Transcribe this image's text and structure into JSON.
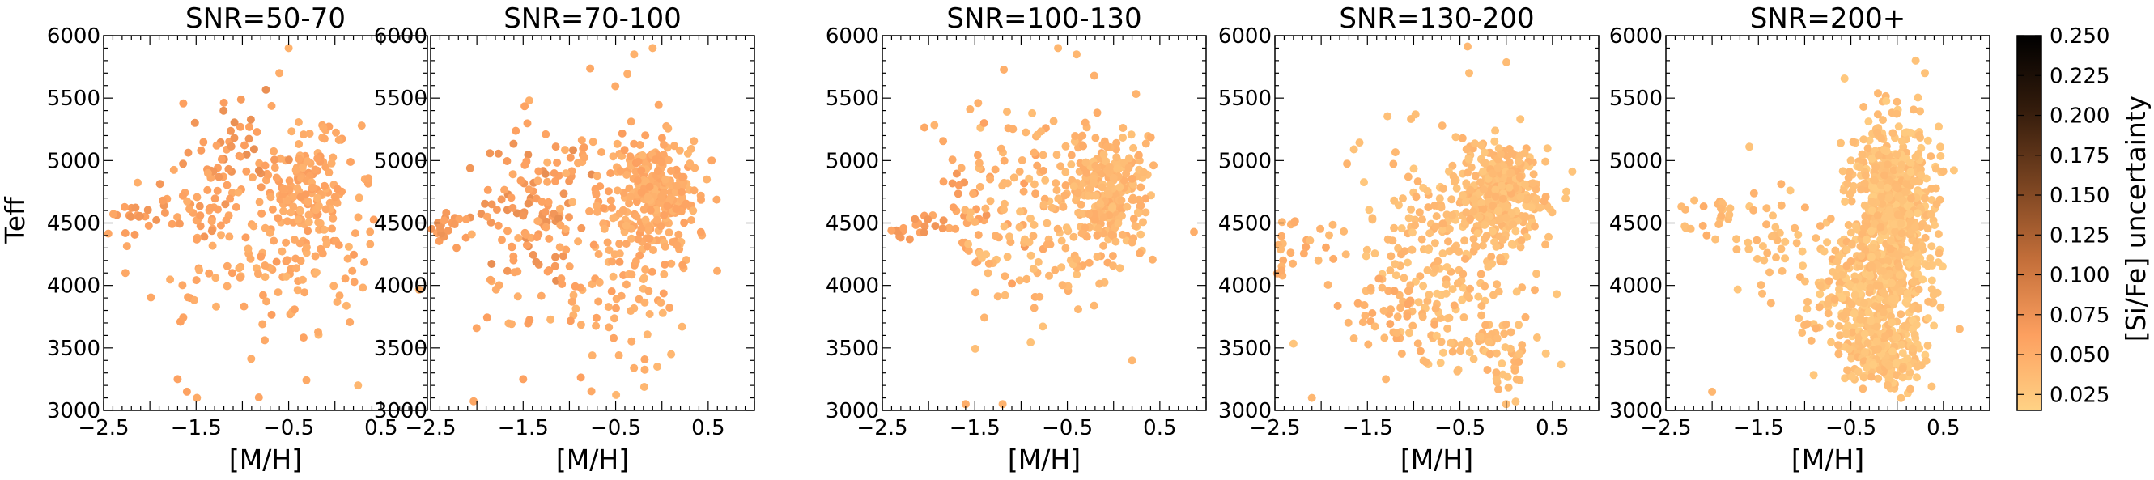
{
  "chart_data": {
    "type": "scatter",
    "ylabel": "Teff",
    "xlabel": "[M/H]",
    "xlim": [
      -2.5,
      1.0
    ],
    "ylim": [
      3000,
      6000
    ],
    "xticks": [
      -2.5,
      -1.5,
      -0.5,
      0.5
    ],
    "xtick_labels": [
      "−2.5",
      "−1.5",
      "−0.5",
      "0.5"
    ],
    "yticks": [
      3000,
      3500,
      4000,
      4500,
      5000,
      5500,
      6000
    ],
    "ytick_labels": [
      "3000",
      "3500",
      "4000",
      "4500",
      "5000",
      "5500",
      "6000"
    ],
    "grid": false,
    "colorbar": {
      "label": "[Si/Fe] uncertainty",
      "range": [
        0.015,
        0.25
      ],
      "ticks": [
        0.025,
        0.05,
        0.075,
        0.1,
        0.125,
        0.15,
        0.175,
        0.2,
        0.225,
        0.25
      ],
      "tick_labels": [
        "0.025",
        "0.050",
        "0.075",
        "0.100",
        "0.125",
        "0.150",
        "0.175",
        "0.200",
        "0.225",
        "0.250"
      ],
      "colors": [
        "#ffd285",
        "#fda060",
        "#c46f3a",
        "#7a4421",
        "#341c0c",
        "#000000"
      ]
    },
    "panels": [
      {
        "title": "SNR=50-70",
        "clusters": [
          {
            "cx": -0.3,
            "cy": 4800,
            "sx": 0.25,
            "sy": 250,
            "n": 150,
            "c": 0.055
          },
          {
            "cx": -1.0,
            "cy": 5150,
            "sx": 0.25,
            "sy": 150,
            "n": 30,
            "c": 0.07
          },
          {
            "cx": -1.4,
            "cy": 4700,
            "sx": 0.25,
            "sy": 250,
            "n": 50,
            "c": 0.062
          },
          {
            "cx": -2.3,
            "cy": 4550,
            "sx": 0.2,
            "sy": 80,
            "n": 20,
            "c": 0.065
          },
          {
            "cx": -0.4,
            "cy": 4100,
            "sx": 0.4,
            "sy": 350,
            "n": 70,
            "c": 0.05
          },
          {
            "cx": -1.2,
            "cy": 4300,
            "sx": 0.5,
            "sy": 400,
            "n": 60,
            "c": 0.055
          }
        ],
        "extra_points": [
          {
            "x": -0.5,
            "y": 5900,
            "c": 0.045
          },
          {
            "x": -1.7,
            "y": 3250,
            "c": 0.06
          },
          {
            "x": -1.6,
            "y": 3150,
            "c": 0.06
          },
          {
            "x": 0.25,
            "y": 3200,
            "c": 0.04
          },
          {
            "x": -0.6,
            "y": 5700,
            "c": 0.05
          }
        ]
      },
      {
        "title": "SNR=70-100",
        "clusters": [
          {
            "cx": -0.1,
            "cy": 4750,
            "sx": 0.25,
            "sy": 220,
            "n": 260,
            "c": 0.05
          },
          {
            "cx": -1.4,
            "cy": 4600,
            "sx": 0.3,
            "sy": 280,
            "n": 70,
            "c": 0.07
          },
          {
            "cx": -2.3,
            "cy": 4500,
            "sx": 0.2,
            "sy": 100,
            "n": 30,
            "c": 0.065
          },
          {
            "cx": -0.8,
            "cy": 4950,
            "sx": 0.4,
            "sy": 300,
            "n": 60,
            "c": 0.055
          },
          {
            "cx": -0.4,
            "cy": 4000,
            "sx": 0.4,
            "sy": 400,
            "n": 90,
            "c": 0.05
          },
          {
            "cx": -1.4,
            "cy": 4100,
            "sx": 0.5,
            "sy": 350,
            "n": 40,
            "c": 0.055
          }
        ],
        "extra_points": [
          {
            "x": -0.3,
            "y": 5850,
            "c": 0.045
          },
          {
            "x": -0.1,
            "y": 5900,
            "c": 0.045
          },
          {
            "x": -1.5,
            "y": 3250,
            "c": 0.06
          },
          {
            "x": -0.05,
            "y": 3350,
            "c": 0.04
          },
          {
            "x": 0.1,
            "y": 3450,
            "c": 0.04
          }
        ]
      },
      {
        "title": "SNR=100-130",
        "clusters": [
          {
            "cx": -0.05,
            "cy": 4750,
            "sx": 0.22,
            "sy": 230,
            "n": 250,
            "c": 0.04
          },
          {
            "cx": -1.6,
            "cy": 4550,
            "sx": 0.3,
            "sy": 250,
            "n": 40,
            "c": 0.06
          },
          {
            "cx": -2.3,
            "cy": 4450,
            "sx": 0.2,
            "sy": 80,
            "n": 20,
            "c": 0.065
          },
          {
            "cx": -0.7,
            "cy": 4400,
            "sx": 0.5,
            "sy": 450,
            "n": 130,
            "c": 0.04
          },
          {
            "cx": -1.0,
            "cy": 5100,
            "sx": 0.4,
            "sy": 250,
            "n": 30,
            "c": 0.045
          }
        ],
        "extra_points": [
          {
            "x": -0.6,
            "y": 5900,
            "c": 0.04
          },
          {
            "x": -0.4,
            "y": 5850,
            "c": 0.04
          },
          {
            "x": -1.6,
            "y": 3050,
            "c": 0.05
          },
          {
            "x": -1.2,
            "y": 3050,
            "c": 0.045
          },
          {
            "x": 0.2,
            "y": 3400,
            "c": 0.04
          },
          {
            "x": -1.4,
            "y": 5300,
            "c": 0.06
          }
        ]
      },
      {
        "title": "SNR=130-200",
        "clusters": [
          {
            "cx": -0.05,
            "cy": 4750,
            "sx": 0.2,
            "sy": 200,
            "n": 300,
            "c": 0.035
          },
          {
            "cx": -0.6,
            "cy": 4300,
            "sx": 0.5,
            "sy": 450,
            "n": 260,
            "c": 0.035
          },
          {
            "cx": -2.3,
            "cy": 4300,
            "sx": 0.2,
            "sy": 150,
            "n": 30,
            "c": 0.045
          },
          {
            "cx": -1.2,
            "cy": 3850,
            "sx": 0.3,
            "sy": 150,
            "n": 40,
            "c": 0.045
          },
          {
            "cx": -0.3,
            "cy": 3550,
            "sx": 0.3,
            "sy": 80,
            "n": 40,
            "c": 0.035
          },
          {
            "cx": 0.0,
            "cy": 3300,
            "sx": 0.1,
            "sy": 150,
            "n": 20,
            "c": 0.035
          }
        ],
        "extra_points": [
          {
            "x": -0.4,
            "y": 5700,
            "c": 0.035
          },
          {
            "x": -2.1,
            "y": 3100,
            "c": 0.04
          },
          {
            "x": -1.3,
            "y": 3250,
            "c": 0.04
          },
          {
            "x": 0.0,
            "y": 3050,
            "c": 0.035
          }
        ]
      },
      {
        "title": "SNR=200+",
        "clusters": [
          {
            "cx": -0.05,
            "cy": 4700,
            "sx": 0.22,
            "sy": 300,
            "n": 520,
            "c": 0.03
          },
          {
            "cx": -0.2,
            "cy": 3900,
            "sx": 0.3,
            "sy": 300,
            "n": 420,
            "c": 0.03
          },
          {
            "cx": -0.1,
            "cy": 3400,
            "sx": 0.2,
            "sy": 120,
            "n": 120,
            "c": 0.03
          },
          {
            "cx": -1.1,
            "cy": 4200,
            "sx": 0.4,
            "sy": 300,
            "n": 80,
            "c": 0.035
          },
          {
            "cx": -2.1,
            "cy": 4550,
            "sx": 0.3,
            "sy": 100,
            "n": 20,
            "c": 0.04
          }
        ],
        "extra_points": [
          {
            "x": 0.2,
            "y": 5800,
            "c": 0.03
          },
          {
            "x": 0.3,
            "y": 5700,
            "c": 0.03
          },
          {
            "x": -2.0,
            "y": 3150,
            "c": 0.04
          },
          {
            "x": -0.5,
            "y": 5000,
            "c": 0.03
          }
        ]
      }
    ]
  }
}
